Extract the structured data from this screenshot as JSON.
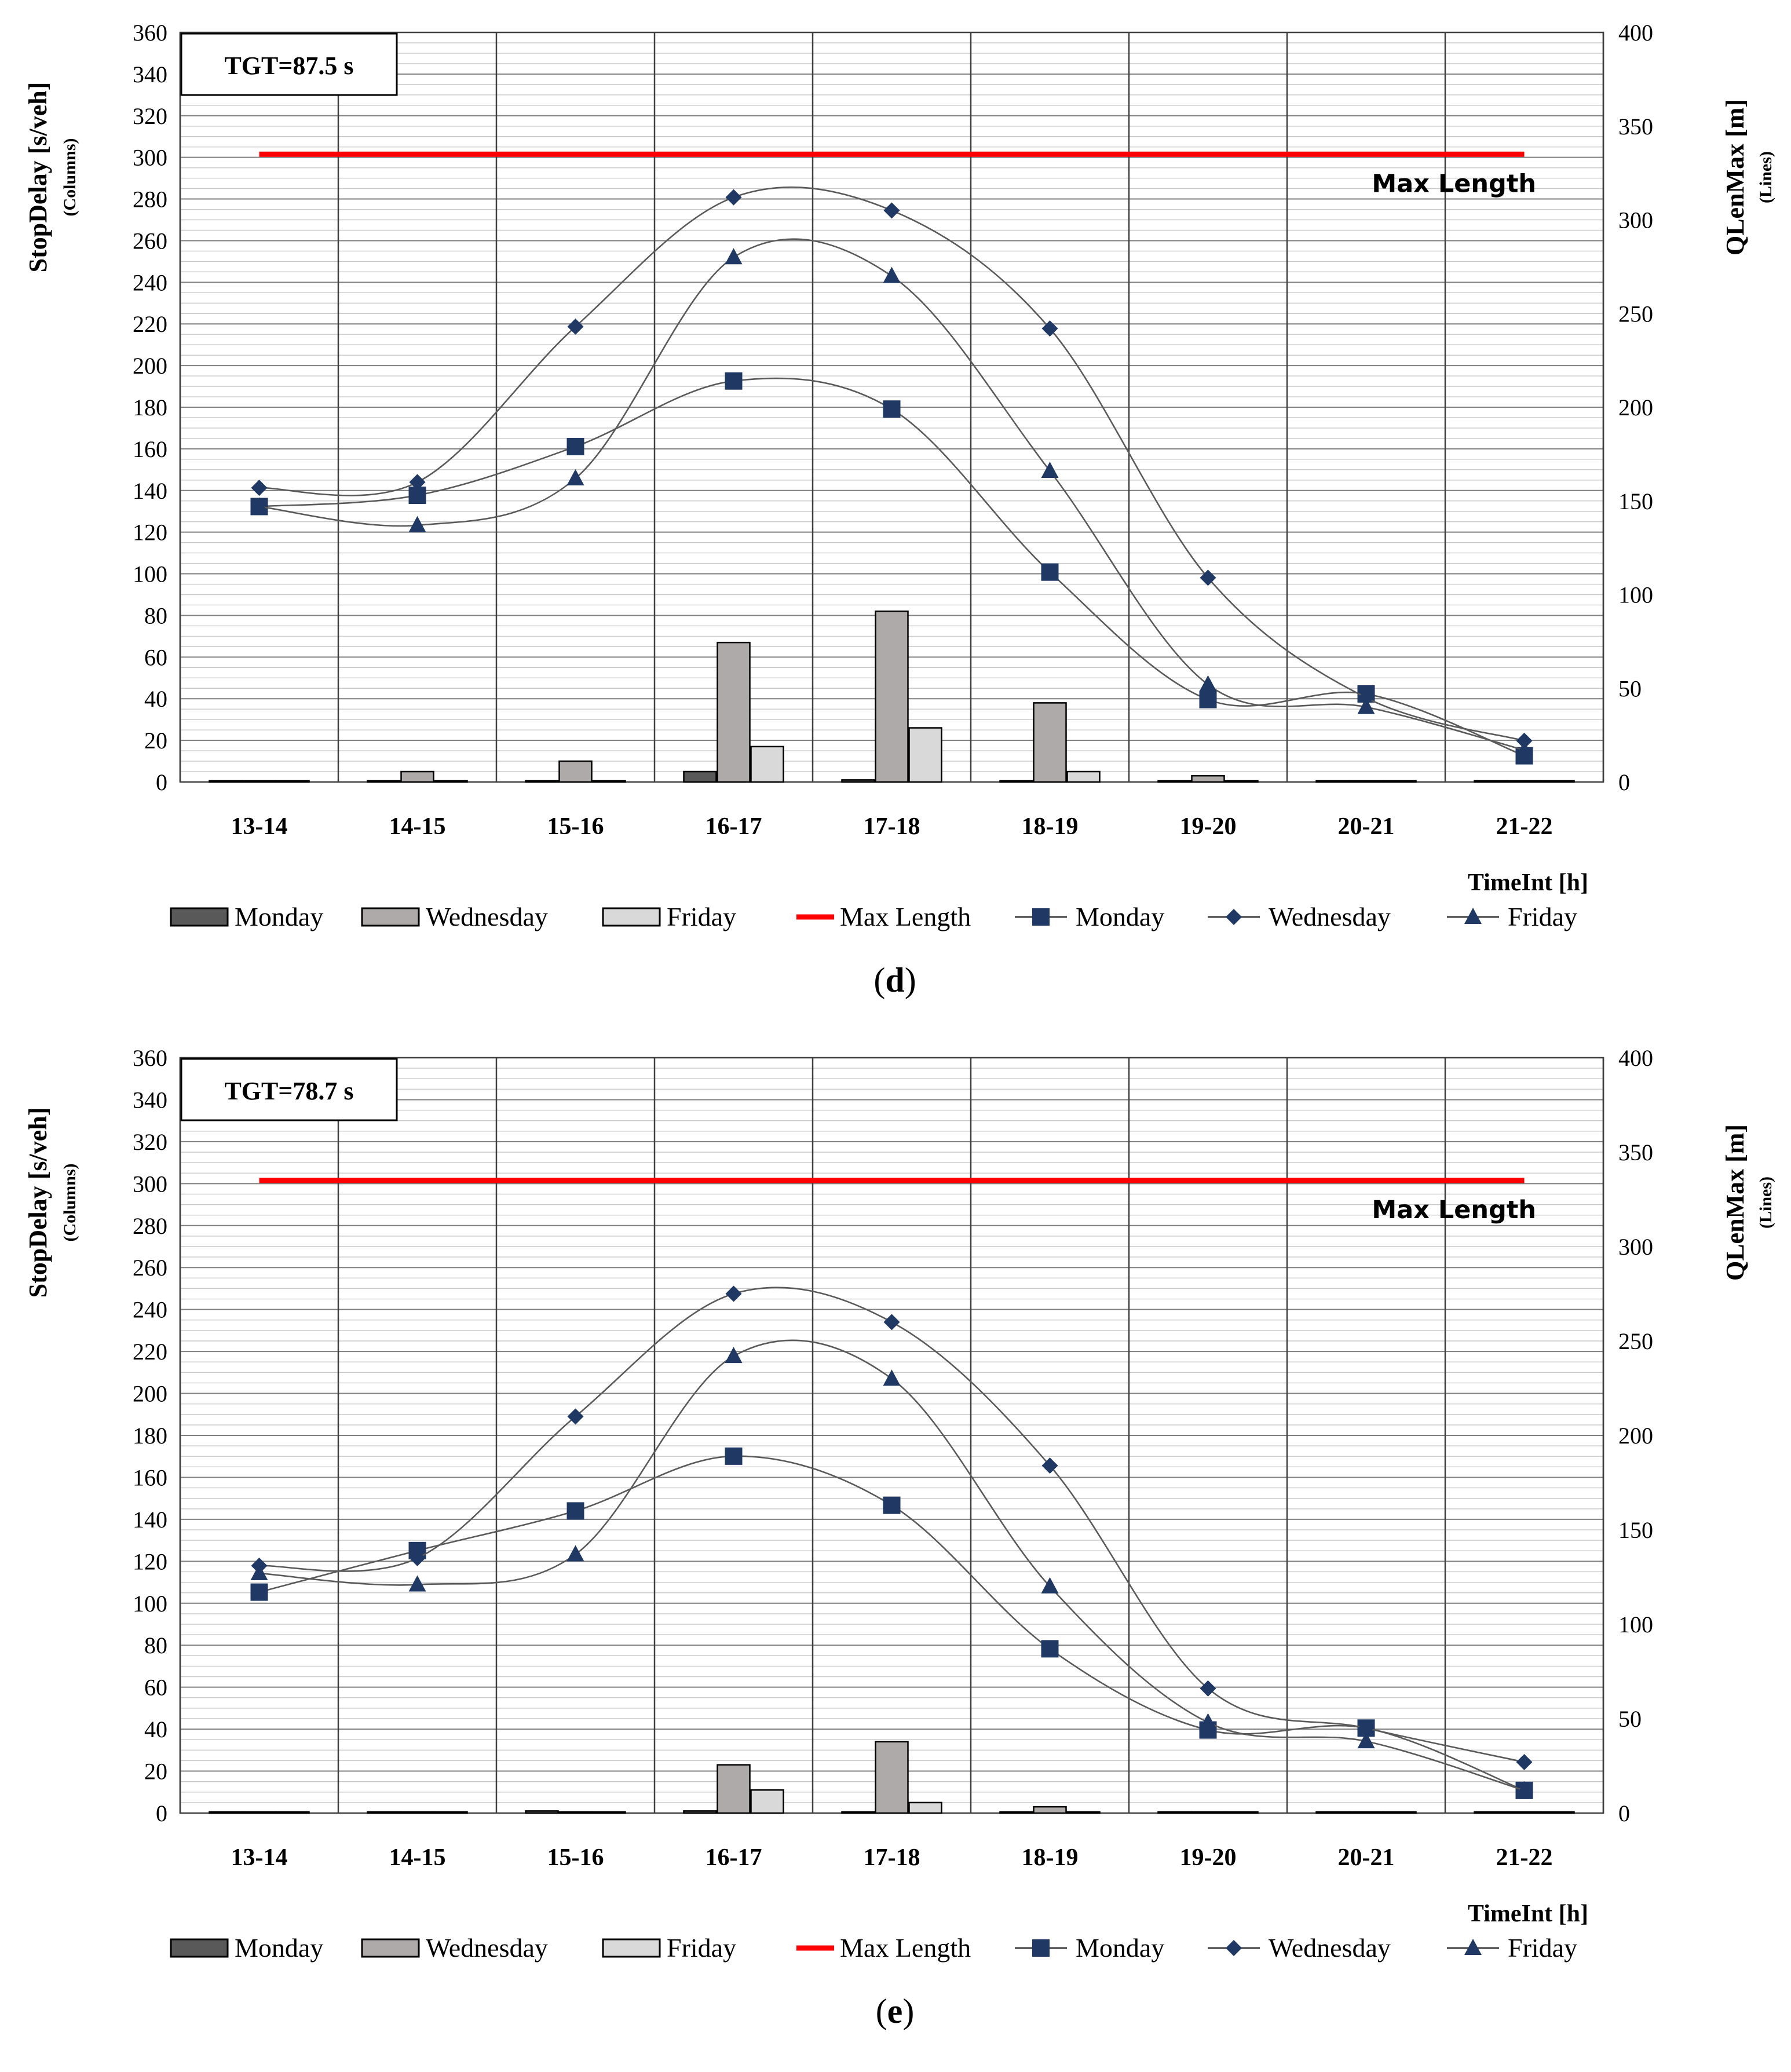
{
  "chart_data": [
    {
      "type": "bar+line",
      "panel_label": "d",
      "annotation": "TGT=87.5 s",
      "ylabel": "StopDelay [s/veh]",
      "ylabel_sub": "(Columns)",
      "y2label": "QLenMax [m]",
      "y2label_sub": "(Lines)",
      "xlabel": "TimeInt [h]",
      "ylim": [
        0,
        360
      ],
      "ystep": 20,
      "y2lim": [
        0,
        400
      ],
      "y2step": 50,
      "categories": [
        "13-14",
        "14-15",
        "15-16",
        "16-17",
        "17-18",
        "18-19",
        "19-20",
        "20-21",
        "21-22"
      ],
      "bars": [
        {
          "name": "Monday",
          "color": "#595959",
          "values": [
            0,
            0,
            0,
            5,
            1,
            0,
            0,
            0,
            0
          ]
        },
        {
          "name": "Wednesday",
          "color": "#aeaaaa",
          "values": [
            0,
            5,
            10,
            67,
            82,
            38,
            3,
            0,
            0
          ]
        },
        {
          "name": "Friday",
          "color": "#d9d9d9",
          "values": [
            0,
            0,
            0,
            17,
            26,
            5,
            0,
            0,
            0
          ]
        }
      ],
      "max_length": {
        "name": "Max Length",
        "label": "Max Length",
        "value": 335,
        "color": "#ff0000"
      },
      "lines": [
        {
          "name": "Monday",
          "marker": "square",
          "color": "#1f3864",
          "values": [
            147,
            153,
            179,
            214,
            199,
            112,
            44,
            47,
            14
          ]
        },
        {
          "name": "Wednesday",
          "marker": "diamond",
          "color": "#1f3864",
          "values": [
            157,
            160,
            243,
            312,
            305,
            242,
            109,
            45,
            22
          ]
        },
        {
          "name": "Friday",
          "marker": "triangle",
          "color": "#1f3864",
          "values": [
            147,
            137,
            162,
            280,
            270,
            166,
            52,
            40,
            17
          ]
        }
      ]
    },
    {
      "type": "bar+line",
      "panel_label": "e",
      "annotation": "TGT=78.7 s",
      "ylabel": "StopDelay [s/veh]",
      "ylabel_sub": "(Columns)",
      "y2label": "QLenMax [m]",
      "y2label_sub": "(Lines)",
      "xlabel": "TimeInt [h]",
      "ylim": [
        0,
        360
      ],
      "ystep": 20,
      "y2lim": [
        0,
        400
      ],
      "y2step": 50,
      "categories": [
        "13-14",
        "14-15",
        "15-16",
        "16-17",
        "17-18",
        "18-19",
        "19-20",
        "20-21",
        "21-22"
      ],
      "bars": [
        {
          "name": "Monday",
          "color": "#595959",
          "values": [
            0,
            0,
            1,
            1,
            0,
            0,
            0,
            0,
            0
          ]
        },
        {
          "name": "Wednesday",
          "color": "#aeaaaa",
          "values": [
            0,
            0,
            0,
            23,
            34,
            3,
            0,
            0,
            0
          ]
        },
        {
          "name": "Friday",
          "color": "#d9d9d9",
          "values": [
            0,
            0,
            0,
            11,
            5,
            0,
            0,
            0,
            0
          ]
        }
      ],
      "max_length": {
        "name": "Max Length",
        "label": "Max Length",
        "value": 335,
        "color": "#ff0000"
      },
      "lines": [
        {
          "name": "Monday",
          "marker": "square",
          "color": "#1f3864",
          "values": [
            117,
            139,
            160,
            189,
            163,
            87,
            44,
            45,
            12
          ]
        },
        {
          "name": "Wednesday",
          "marker": "diamond",
          "color": "#1f3864",
          "values": [
            131,
            135,
            210,
            275,
            260,
            184,
            66,
            45,
            27
          ]
        },
        {
          "name": "Friday",
          "marker": "triangle",
          "color": "#1f3864",
          "values": [
            127,
            121,
            137,
            242,
            230,
            120,
            48,
            38,
            12
          ]
        }
      ]
    }
  ]
}
